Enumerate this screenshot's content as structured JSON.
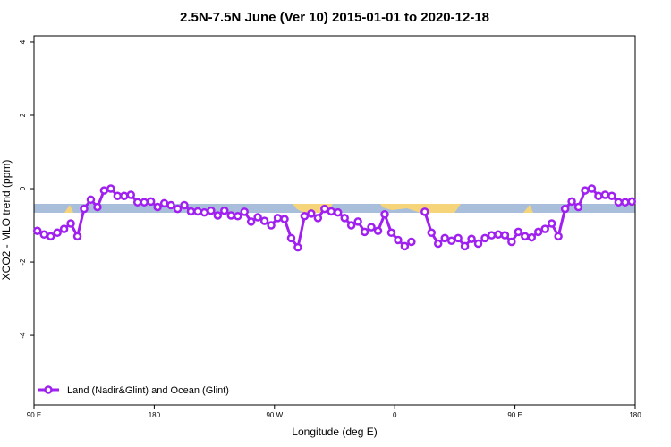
{
  "chart_data": {
    "type": "line",
    "title": "2.5N-7.5N June (Ver 10)   2015-01-01 to 2020-12-18",
    "x_label": "Longitude (deg E)",
    "y_label": "XCO2 - MLO trend (ppm)",
    "xlim": [
      90,
      540
    ],
    "ylim": [
      -5.9,
      4.17
    ],
    "xticks": [
      {
        "value": 90,
        "label": "90 E"
      },
      {
        "value": 180,
        "label": "180"
      },
      {
        "value": 270,
        "label": "90 W"
      },
      {
        "value": 360,
        "label": "0"
      },
      {
        "value": 450,
        "label": "90 E"
      },
      {
        "value": 540,
        "label": "180"
      }
    ],
    "yticks": [
      -4,
      -2,
      0,
      2,
      4
    ],
    "x": [
      92.5,
      97.5,
      102.5,
      107.5,
      112.5,
      117.5,
      122.5,
      127.5,
      132.5,
      137.5,
      142.5,
      147.5,
      152.5,
      157.5,
      162.5,
      167.5,
      172.5,
      177.5,
      182.5,
      187.5,
      192.5,
      197.5,
      202.5,
      207.5,
      212.5,
      217.5,
      222.5,
      227.5,
      232.5,
      237.5,
      242.5,
      247.5,
      252.5,
      257.5,
      262.5,
      267.5,
      272.5,
      277.5,
      282.5,
      287.5,
      292.5,
      297.5,
      302.5,
      307.5,
      312.5,
      317.5,
      322.5,
      327.5,
      332.5,
      337.5,
      342.5,
      347.5,
      352.5,
      357.5,
      362.5,
      367.5,
      372.5,
      377.5,
      382.5,
      387.5,
      392.5,
      397.5,
      402.5,
      407.5,
      412.5,
      417.5,
      422.5,
      427.5,
      432.5,
      437.5,
      442.5,
      447.5,
      452.5,
      457.5,
      462.5,
      467.5,
      472.5,
      477.5,
      482.5,
      487.5,
      492.5,
      497.5,
      502.5,
      507.5,
      512.5,
      517.5,
      522.5,
      527.5,
      532.5,
      537.5
    ],
    "series": [
      {
        "name": "Land (Nadir&Glint) and Ocean (Glint)",
        "color": "#a020f0",
        "values": [
          -1.15,
          -1.25,
          -1.3,
          -1.2,
          -1.1,
          -0.95,
          -1.3,
          -0.55,
          -0.3,
          -0.5,
          -0.05,
          0,
          -0.2,
          -0.2,
          -0.17,
          -0.37,
          -0.37,
          -0.35,
          -0.5,
          -0.4,
          -0.45,
          -0.55,
          -0.45,
          -0.62,
          -0.62,
          -0.65,
          -0.6,
          -0.73,
          -0.6,
          -0.73,
          -0.75,
          -0.63,
          -0.9,
          -0.78,
          -0.88,
          -1.0,
          -0.8,
          -0.83,
          -1.35,
          -1.6,
          -0.75,
          -0.68,
          -0.8,
          -0.55,
          -0.62,
          -0.65,
          -0.8,
          -1.0,
          -0.9,
          -1.18,
          -1.05,
          -1.15,
          -0.7,
          -1.2,
          -1.4,
          -1.57,
          -1.45,
          null,
          -0.63,
          -1.2,
          -1.5,
          -1.35,
          -1.42,
          -1.35,
          -1.57,
          -1.37,
          -1.5,
          -1.35,
          -1.27,
          -1.25,
          -1.27,
          -1.45,
          -1.18,
          -1.3,
          -1.33,
          -1.18,
          -1.1,
          -0.95,
          -1.3,
          -0.55,
          -0.35,
          -0.5,
          -0.05,
          0,
          -0.2,
          -0.17,
          -0.2,
          -0.37,
          -0.37,
          -0.35
        ]
      }
    ],
    "legend": "bottom-left"
  }
}
